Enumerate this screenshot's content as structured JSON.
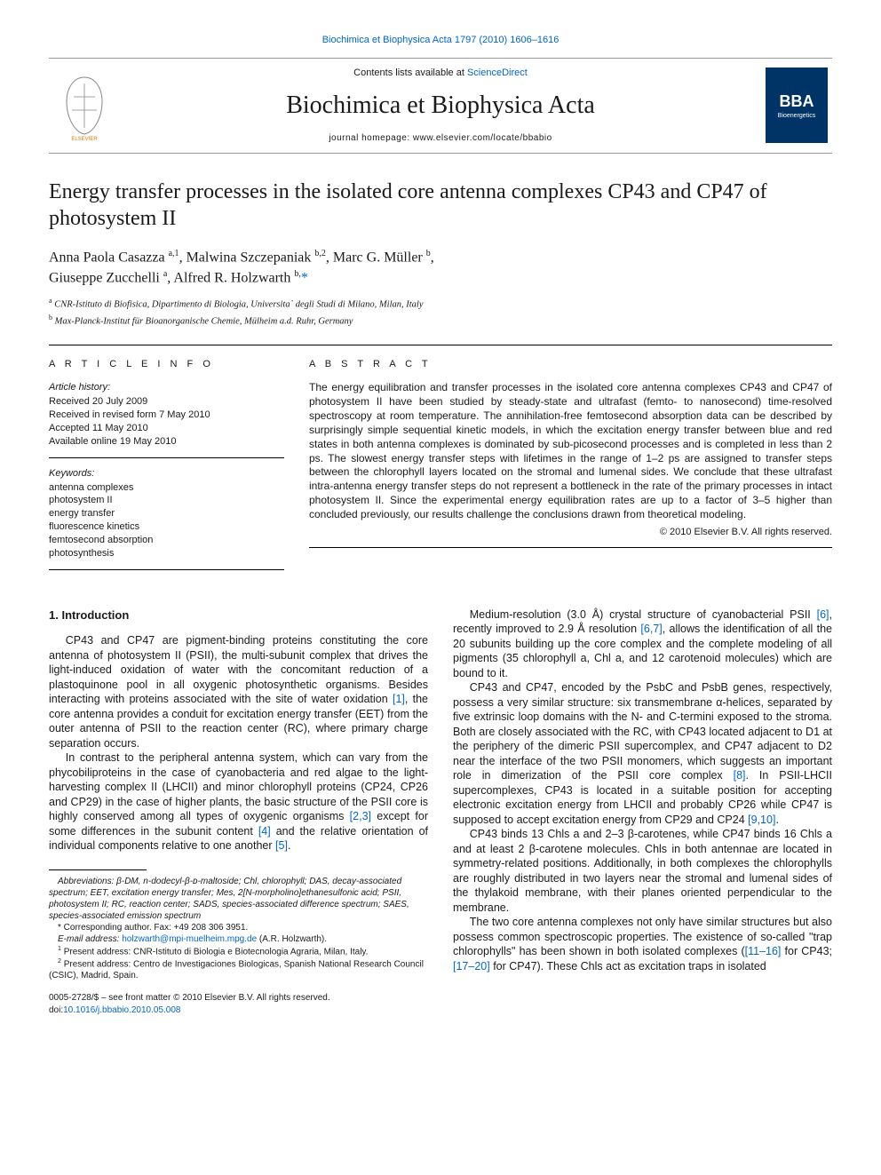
{
  "top_link": "Biochimica et Biophysica Acta 1797 (2010) 1606–1616",
  "masthead": {
    "contents_prefix": "Contents lists available at ",
    "contents_link": "ScienceDirect",
    "journal": "Biochimica et Biophysica Acta",
    "homepage": "journal homepage: www.elsevier.com/locate/bbabio"
  },
  "logos": {
    "bba_main": "BBA",
    "bba_sub": "Bioenergetics"
  },
  "title": "Energy transfer processes in the isolated core antenna complexes CP43 and CP47 of photosystem II",
  "authors_html": "Anna Paola Casazza <sup>a,1</sup>, Malwina Szczepaniak <sup>b,2</sup>, Marc G. Müller <sup>b</sup>,<br>Giuseppe Zucchelli <sup>a</sup>, Alfred R. Holzwarth <sup>b,</sup><span class=\"star\">*</span>",
  "affiliations": {
    "a": "CNR-Istituto di Biofisica, Dipartimento di Biologia, Universita` degli Studi di Milano, Milan, Italy",
    "b": "Max-Planck-Institut für Bioanorganische Chemie, Mülheim a.d. Ruhr, Germany"
  },
  "article_info": {
    "label": "A R T I C L E   I N F O",
    "history_head": "Article history:",
    "history": [
      "Received 20 July 2009",
      "Received in revised form 7 May 2010",
      "Accepted 11 May 2010",
      "Available online 19 May 2010"
    ],
    "keywords_head": "Keywords:",
    "keywords": [
      "antenna complexes",
      "photosystem II",
      "energy transfer",
      "fluorescence kinetics",
      "femtosecond absorption",
      "photosynthesis"
    ]
  },
  "abstract": {
    "label": "A B S T R A C T",
    "text": "The energy equilibration and transfer processes in the isolated core antenna complexes CP43 and CP47 of photosystem II have been studied by steady-state and ultrafast (femto- to nanosecond) time-resolved spectroscopy at room temperature. The annihilation-free femtosecond absorption data can be described by surprisingly simple sequential kinetic models, in which the excitation energy transfer between blue and red states in both antenna complexes is dominated by sub-picosecond processes and is completed in less than 2 ps. The slowest energy transfer steps with lifetimes in the range of 1–2 ps are assigned to transfer steps between the chlorophyll layers located on the stromal and lumenal sides. We conclude that these ultrafast intra-antenna energy transfer steps do not represent a bottleneck in the rate of the primary processes in intact photosystem II. Since the experimental energy equilibration rates are up to a factor of 3–5 higher than concluded previously, our results challenge the conclusions drawn from theoretical modeling.",
    "copyright": "© 2010 Elsevier B.V. All rights reserved."
  },
  "intro_heading": "1. Introduction",
  "paragraphs": {
    "p1": "CP43 and CP47 are pigment-binding proteins constituting the core antenna of photosystem II (PSII), the multi-subunit complex that drives the light-induced oxidation of water with the concomitant reduction of a plastoquinone pool in all oxygenic photosynthetic organisms. Besides interacting with proteins associated with the site of water oxidation ",
    "p1_cite": "[1]",
    "p1_tail": ", the core antenna provides a conduit for excitation energy transfer (EET) from the outer antenna of PSII to the reaction center (RC), where primary charge separation occurs.",
    "p2": "In contrast to the peripheral antenna system, which can vary from the phycobiliproteins in the case of cyanobacteria and red algae to the light-harvesting complex II (LHCII) and minor chlorophyll proteins (CP24, CP26 and CP29) in the case of higher plants, the basic structure of the PSII core is highly conserved among all types of oxygenic organisms ",
    "p2_cite1": "[2,3]",
    "p2_mid": " except for some differences in the subunit content ",
    "p2_cite2": "[4]",
    "p2_mid2": " and the relative orientation of individual components relative to one another ",
    "p2_cite3": "[5]",
    "p2_tail": ".",
    "p3": "Medium-resolution (3.0 Å) crystal structure of cyanobacterial PSII ",
    "p3_cite1": "[6]",
    "p3_mid": ", recently improved to 2.9 Å resolution ",
    "p3_cite2": "[6,7]",
    "p3_tail": ", allows the identification of all the 20 subunits building up the core complex and the complete modeling of all pigments (35 chlorophyll a, Chl a, and 12 carotenoid molecules) which are bound to it.",
    "p4": "CP43 and CP47, encoded by the PsbC and PsbB genes, respectively, possess a very similar structure: six transmembrane α-helices, separated by five extrinsic loop domains with the N- and C-termini exposed to the stroma. Both are closely associated with the RC, with CP43 located adjacent to D1 at the periphery of the dimeric PSII supercomplex, and CP47 adjacent to D2 near the interface of the two PSII monomers, which suggests an important role in dimerization of the PSII core complex ",
    "p4_cite1": "[8]",
    "p4_mid": ". In PSII-LHCII supercomplexes, CP43 is located in a suitable position for accepting electronic excitation energy from LHCII and probably CP26 while CP47 is supposed to accept excitation energy from CP29 and CP24 ",
    "p4_cite2": "[9,10]",
    "p4_tail": ".",
    "p5": "CP43 binds 13 Chls a and 2–3 β-carotenes, while CP47 binds 16 Chls a and at least 2 β-carotene molecules. Chls in both antennae are located in symmetry-related positions. Additionally, in both complexes the chlorophylls are roughly distributed in two layers near the stromal and lumenal sides of the thylakoid membrane, with their planes oriented perpendicular to the membrane.",
    "p6": "The two core antenna complexes not only have similar structures but also possess common spectroscopic properties. The existence of so-called \"trap chlorophylls\" has been shown in both isolated complexes (",
    "p6_cite1": "[11–16]",
    "p6_mid": " for CP43; ",
    "p6_cite2": "[17–20]",
    "p6_tail": " for CP47). These Chls act as excitation traps in isolated"
  },
  "footnotes": {
    "abbrev": "Abbreviations: β-DM, n-dodecyl-β-ᴅ-maltoside; Chl, chlorophyll; DAS, decay-associated spectrum; EET, excitation energy transfer; Mes, 2[N-morpholino]ethanesulfonic acid; PSII, photosystem II; RC, reaction center; SADS, species-associated difference spectrum; SAES, species-associated emission spectrum",
    "corr": "* Corresponding author. Fax: +49 208 306 3951.",
    "email_label": "E-mail address: ",
    "email": "holzwarth@mpi-muelheim.mpg.de",
    "email_tail": " (A.R. Holzwarth).",
    "addr1": "Present address: CNR-Istituto di Biologia e Biotecnologia Agraria, Milan, Italy.",
    "addr2": "Present address: Centro de Investigaciones Biologicas, Spanish National Research Council (CSIC), Madrid, Spain."
  },
  "pub": {
    "front": "0005-2728/$ – see front matter © 2010 Elsevier B.V. All rights reserved.",
    "doi_label": "doi:",
    "doi": "10.1016/j.bbabio.2010.05.008"
  },
  "colors": {
    "link": "#0066cc",
    "text": "#1a1a1a",
    "rule": "#000000",
    "bba_bg": "#003366"
  }
}
